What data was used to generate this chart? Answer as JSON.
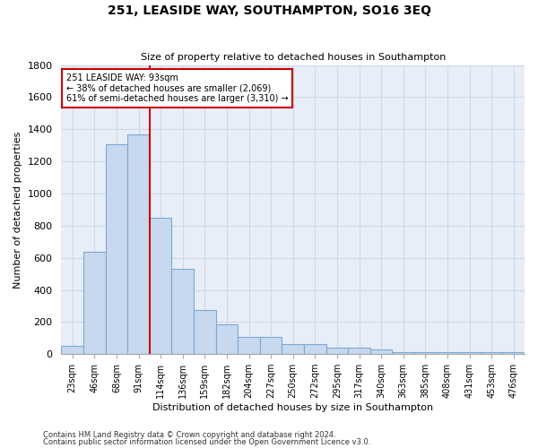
{
  "title1": "251, LEASIDE WAY, SOUTHAMPTON, SO16 3EQ",
  "title2": "Size of property relative to detached houses in Southampton",
  "xlabel": "Distribution of detached houses by size in Southampton",
  "ylabel": "Number of detached properties",
  "bar_labels": [
    "23sqm",
    "46sqm",
    "68sqm",
    "91sqm",
    "114sqm",
    "136sqm",
    "159sqm",
    "182sqm",
    "204sqm",
    "227sqm",
    "250sqm",
    "272sqm",
    "295sqm",
    "317sqm",
    "340sqm",
    "363sqm",
    "385sqm",
    "408sqm",
    "431sqm",
    "453sqm",
    "476sqm"
  ],
  "bar_values": [
    50,
    635,
    1305,
    1370,
    848,
    530,
    275,
    185,
    105,
    105,
    62,
    62,
    38,
    38,
    27,
    15,
    15,
    15,
    15,
    15,
    15
  ],
  "bar_color": "#c8d8ee",
  "bar_edge_color": "#7baad4",
  "vline_color": "#cc0000",
  "annotation_text": "251 LEASIDE WAY: 93sqm\n← 38% of detached houses are smaller (2,069)\n61% of semi-detached houses are larger (3,310) →",
  "annotation_box_color": "#cc0000",
  "ylim": [
    0,
    1800
  ],
  "yticks": [
    0,
    200,
    400,
    600,
    800,
    1000,
    1200,
    1400,
    1600,
    1800
  ],
  "footer1": "Contains HM Land Registry data © Crown copyright and database right 2024.",
  "footer2": "Contains public sector information licensed under the Open Government Licence v3.0.",
  "grid_color": "#d0d8e8",
  "bg_color": "#e8eef8"
}
